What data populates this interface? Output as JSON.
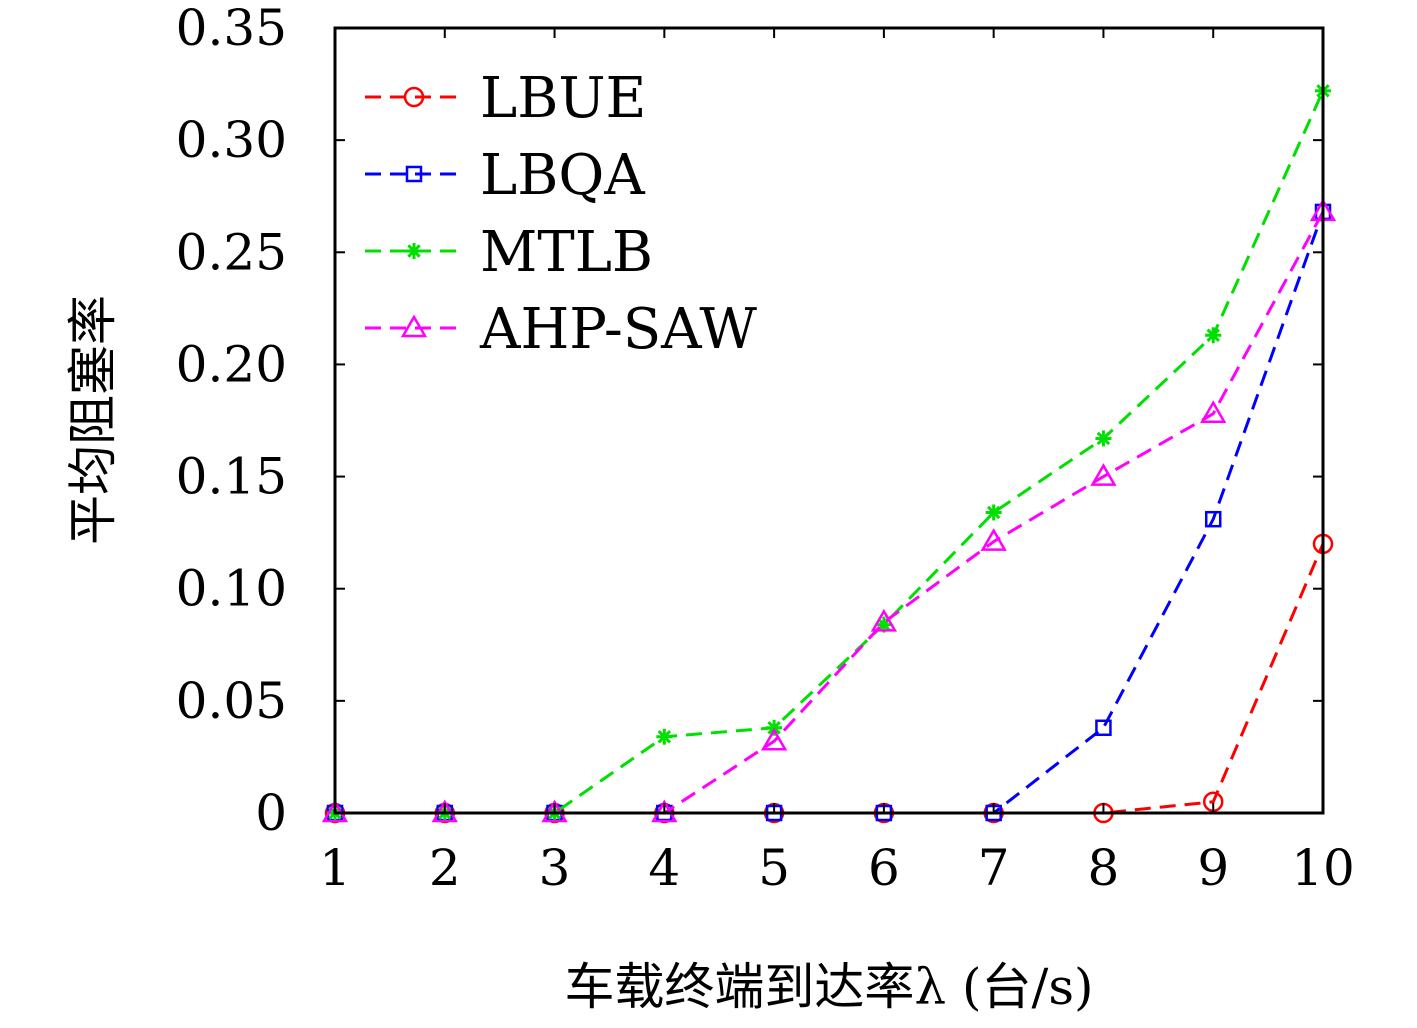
{
  "chart_data": {
    "type": "line",
    "title": "",
    "xlabel": "车载终端到达率λ (台/s)",
    "ylabel": "平均阻塞率",
    "x": [
      1,
      2,
      3,
      4,
      5,
      6,
      7,
      8,
      9,
      10
    ],
    "x_ticks": [
      "1",
      "2",
      "3",
      "4",
      "5",
      "6",
      "7",
      "8",
      "9",
      "10"
    ],
    "xlim": [
      1,
      10
    ],
    "y_ticks": [
      "0",
      "0.05",
      "0.10",
      "0.15",
      "0.20",
      "0.25",
      "0.30",
      "0.35"
    ],
    "ylim": [
      0,
      0.35
    ],
    "grid": false,
    "legend_position": "top-left",
    "series": [
      {
        "name": "LBUE",
        "color": "#ff0000",
        "marker": "circle",
        "values": [
          0,
          0,
          0,
          0,
          0,
          0,
          0,
          0,
          0.005,
          0.12
        ]
      },
      {
        "name": "LBQA",
        "color": "#0000ff",
        "marker": "square",
        "values": [
          0,
          0,
          0,
          0,
          0,
          0,
          0,
          0.038,
          0.131,
          0.268
        ]
      },
      {
        "name": "MTLB",
        "color": "#00e000",
        "marker": "star",
        "values": [
          0,
          0,
          0,
          0.034,
          0.038,
          0.084,
          0.134,
          0.167,
          0.213,
          0.322
        ]
      },
      {
        "name": "AHP-SAW",
        "color": "#ff00ff",
        "marker": "triangle",
        "values": [
          0,
          0,
          0,
          0,
          0.032,
          0.085,
          0.121,
          0.15,
          0.178,
          0.268
        ]
      }
    ]
  }
}
